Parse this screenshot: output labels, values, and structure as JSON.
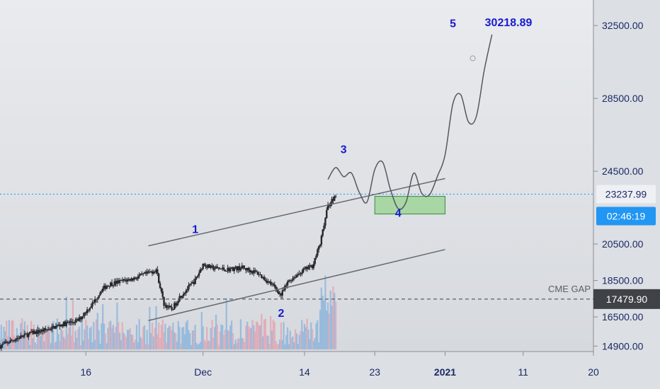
{
  "chart_data": {
    "type": "candlestick",
    "y_axis": {
      "ticks": [
        "14900.00",
        "16500.00",
        "18500.00",
        "20500.00",
        "24500.00",
        "28500.00",
        "32500.00"
      ],
      "tick_values": [
        14900,
        16500,
        18500,
        20500,
        24500,
        28500,
        32500
      ],
      "range": [
        14600,
        33900
      ]
    },
    "x_axis": {
      "ticks": [
        {
          "label": "16",
          "value": "2020-11-16"
        },
        {
          "label": "Dec",
          "value": "2020-12-01"
        },
        {
          "label": "14",
          "value": "2020-12-14"
        },
        {
          "label": "23",
          "value": "2020-12-23"
        },
        {
          "label": "2021",
          "value": "2021-01-01",
          "bold": true
        },
        {
          "label": "11",
          "value": "2021-01-11"
        },
        {
          "label": "20",
          "value": "2021-01-20"
        }
      ],
      "range": [
        "2020-11-05",
        "2021-01-20"
      ]
    },
    "current_price": {
      "value": 23237.99,
      "label": "23237.99",
      "countdown": "02:46:19",
      "color": "#2196f3"
    },
    "cme_gap": {
      "label": "CME GAP",
      "value": 17479.9,
      "value_label": "17479.90"
    },
    "target": {
      "label": "30218.89"
    },
    "wave_labels": [
      {
        "label": "1",
        "date": "2020-11-30",
        "price": 21100
      },
      {
        "label": "2",
        "date": "2020-12-11",
        "price": 16500
      },
      {
        "label": "3",
        "date": "2020-12-19",
        "price": 25500
      },
      {
        "label": "4",
        "date": "2020-12-26",
        "price": 22000
      },
      {
        "label": "5",
        "date": "2021-01-02",
        "price": 32400
      }
    ],
    "channel": {
      "upper": [
        [
          "2020-11-24",
          20400
        ],
        [
          "2021-01-01",
          24100
        ]
      ],
      "lower": [
        [
          "2020-11-24",
          16300
        ],
        [
          "2021-01-01",
          20200
        ]
      ]
    },
    "target_box": {
      "from": "2020-12-23",
      "to": "2021-01-01",
      "high": 23120,
      "low": 22150,
      "color": "#9fd49a"
    },
    "projection_path": [
      [
        "2020-12-17",
        24050
      ],
      [
        "2020-12-18",
        24700
      ],
      [
        "2020-12-19",
        24200
      ],
      [
        "2020-12-20",
        24400
      ],
      [
        "2020-12-21",
        23350
      ],
      [
        "2020-12-22",
        22800
      ],
      [
        "2020-12-23",
        24600
      ],
      [
        "2020-12-24",
        25000
      ],
      [
        "2020-12-25",
        23500
      ],
      [
        "2020-12-26",
        22450
      ],
      [
        "2020-12-27",
        22800
      ],
      [
        "2020-12-28",
        24400
      ],
      [
        "2020-12-29",
        23300
      ],
      [
        "2020-12-30",
        23200
      ],
      [
        "2020-12-31",
        24200
      ],
      [
        "2021-01-01",
        25400
      ],
      [
        "2021-01-02",
        28200
      ],
      [
        "2021-01-03",
        28700
      ],
      [
        "2021-01-04",
        27200
      ],
      [
        "2021-01-05",
        27500
      ],
      [
        "2021-01-06",
        30000
      ],
      [
        "2021-01-07",
        32000
      ]
    ],
    "price_anchors": [
      [
        "2020-11-05",
        14900
      ],
      [
        "2020-11-07",
        15300
      ],
      [
        "2020-11-09",
        15600
      ],
      [
        "2020-11-11",
        15800
      ],
      [
        "2020-11-13",
        16100
      ],
      [
        "2020-11-15",
        16300
      ],
      [
        "2020-11-17",
        17300
      ],
      [
        "2020-11-18",
        18000
      ],
      [
        "2020-11-19",
        18300
      ],
      [
        "2020-11-20",
        18400
      ],
      [
        "2020-11-22",
        18600
      ],
      [
        "2020-11-24",
        18900
      ],
      [
        "2020-11-25",
        19100
      ],
      [
        "2020-11-26",
        17200
      ],
      [
        "2020-11-27",
        16900
      ],
      [
        "2020-11-28",
        17600
      ],
      [
        "2020-11-30",
        18500
      ],
      [
        "2020-12-01",
        19400
      ],
      [
        "2020-12-02",
        19200
      ],
      [
        "2020-12-04",
        19100
      ],
      [
        "2020-12-06",
        19200
      ],
      [
        "2020-12-08",
        18900
      ],
      [
        "2020-12-10",
        18200
      ],
      [
        "2020-12-11",
        17700
      ],
      [
        "2020-12-12",
        18500
      ],
      [
        "2020-12-14",
        19100
      ],
      [
        "2020-12-15",
        19300
      ],
      [
        "2020-12-16",
        20500
      ],
      [
        "2020-12-17",
        22600
      ],
      [
        "2020-12-18",
        23200
      ]
    ]
  }
}
